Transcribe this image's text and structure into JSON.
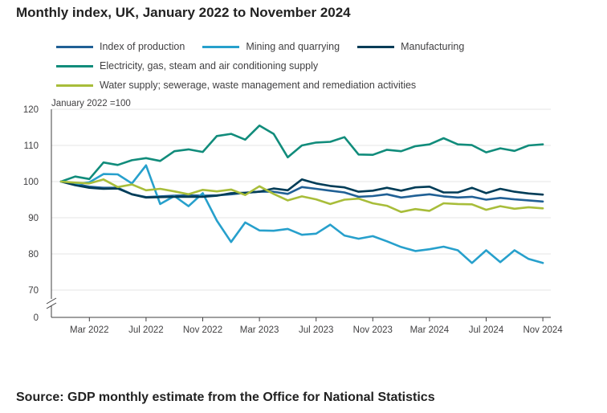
{
  "chart_data": {
    "type": "line",
    "title": "Monthly index, UK, January 2022 to November 2024",
    "unit_note": "January 2022 =100",
    "xlabel": "",
    "ylabel": "",
    "ylim": [
      0,
      120
    ],
    "axis_break": [
      0,
      70
    ],
    "y_ticks": [
      0,
      70,
      80,
      90,
      100,
      110,
      120
    ],
    "x_tick_labels": [
      "Mar 2022",
      "Jul 2022",
      "Nov 2022",
      "Mar 2023",
      "Jul 2023",
      "Nov 2023",
      "Mar 2024",
      "Jul 2024",
      "Nov 2024"
    ],
    "x_tick_index": [
      2,
      6,
      10,
      14,
      18,
      22,
      26,
      30,
      34
    ],
    "categories": [
      "Jan 2022",
      "Feb 2022",
      "Mar 2022",
      "Apr 2022",
      "May 2022",
      "Jun 2022",
      "Jul 2022",
      "Aug 2022",
      "Sep 2022",
      "Oct 2022",
      "Nov 2022",
      "Dec 2022",
      "Jan 2023",
      "Feb 2023",
      "Mar 2023",
      "Apr 2023",
      "May 2023",
      "Jun 2023",
      "Jul 2023",
      "Aug 2023",
      "Sep 2023",
      "Oct 2023",
      "Nov 2023",
      "Dec 2023",
      "Jan 2024",
      "Feb 2024",
      "Mar 2024",
      "Apr 2024",
      "May 2024",
      "Jun 2024",
      "Jul 2024",
      "Aug 2024",
      "Sep 2024",
      "Oct 2024",
      "Nov 2024"
    ],
    "grid": true,
    "legend_position": "top-left",
    "series": [
      {
        "name": "Index of production",
        "color": "#206095",
        "values": [
          100,
          99.3,
          98.6,
          98.3,
          98.3,
          96.5,
          95.7,
          95.9,
          96.1,
          96.2,
          96.1,
          96.2,
          96.5,
          96.9,
          97.2,
          97.2,
          96.6,
          98.5,
          98.0,
          97.5,
          97.0,
          95.8,
          96.0,
          96.5,
          95.6,
          96.1,
          96.5,
          95.9,
          95.6,
          95.8,
          95.0,
          95.5,
          95.1,
          94.8,
          94.5
        ]
      },
      {
        "name": "Mining and quarrying",
        "color": "#27a0cc",
        "values": [
          100,
          99.3,
          99.8,
          102.1,
          102.0,
          99.5,
          104.5,
          93.8,
          96.0,
          93.2,
          96.8,
          89.2,
          83.3,
          88.7,
          86.5,
          86.4,
          86.9,
          85.3,
          85.6,
          88.1,
          85.1,
          84.2,
          84.9,
          83.5,
          81.9,
          80.8,
          81.3,
          82.0,
          81.0,
          77.5,
          81.0,
          77.7,
          81.0,
          78.6,
          77.5
        ]
      },
      {
        "name": "Manufacturing",
        "color": "#003c57",
        "values": [
          100,
          99.0,
          98.3,
          98.0,
          98.1,
          96.5,
          95.6,
          95.7,
          95.8,
          95.8,
          95.8,
          96.1,
          96.8,
          96.9,
          97.2,
          98.1,
          97.6,
          100.6,
          99.5,
          98.8,
          98.4,
          97.2,
          97.5,
          98.3,
          97.5,
          98.4,
          98.6,
          97.0,
          97.0,
          98.3,
          96.8,
          98.0,
          97.2,
          96.7,
          96.4
        ]
      },
      {
        "name": "Electricity, gas, steam and air conditioning supply",
        "color": "#118c7b",
        "values": [
          100,
          101.4,
          100.7,
          105.3,
          104.6,
          105.9,
          106.5,
          105.7,
          108.4,
          108.9,
          108.2,
          112.6,
          113.2,
          111.6,
          115.5,
          113.2,
          106.7,
          110.0,
          110.8,
          111.0,
          112.3,
          107.5,
          107.4,
          108.8,
          108.4,
          109.8,
          110.3,
          112.0,
          110.3,
          110.1,
          108.1,
          109.2,
          108.5,
          110.0,
          110.3
        ]
      },
      {
        "name": "Water supply; sewerage, waste management and remediation activities",
        "color": "#a8bd3a",
        "values": [
          100,
          99.7,
          99.5,
          100.6,
          98.5,
          99.2,
          97.6,
          98.0,
          97.3,
          96.5,
          97.7,
          97.3,
          97.8,
          96.3,
          98.7,
          96.6,
          94.8,
          95.9,
          95.1,
          93.8,
          95.0,
          95.3,
          94.0,
          93.3,
          91.6,
          92.4,
          91.9,
          94.0,
          93.8,
          93.7,
          92.2,
          93.2,
          92.5,
          92.9,
          92.6
        ]
      }
    ],
    "legend_rows": [
      [
        0,
        1,
        2
      ],
      [
        3
      ],
      [
        4
      ]
    ]
  },
  "footer": {
    "source": "Source: GDP monthly estimate from the Office for National Statistics"
  }
}
